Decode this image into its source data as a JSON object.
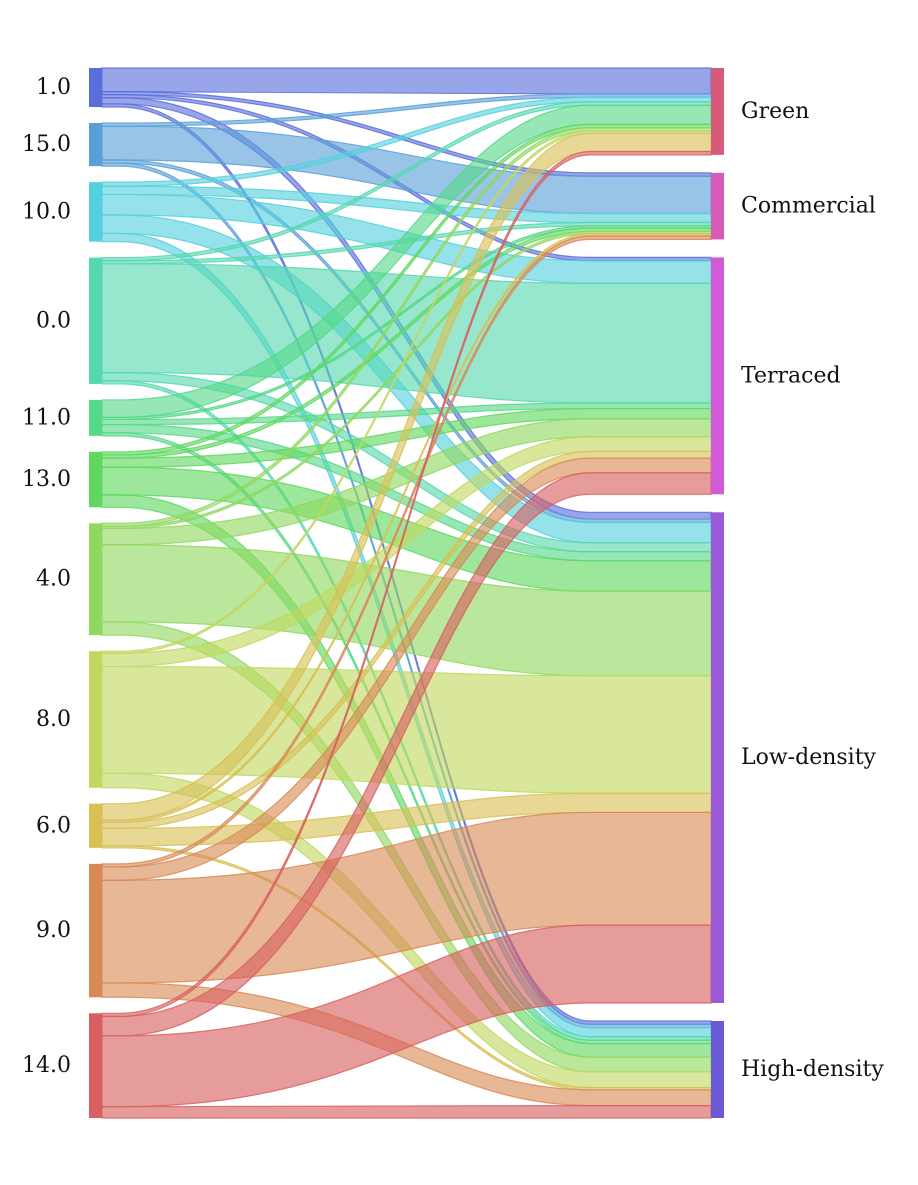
{
  "chart_data": {
    "type": "sankey",
    "title": "",
    "sources": [
      {
        "label": "1.0",
        "color": "#5a6edb"
      },
      {
        "label": "15.0",
        "color": "#5aa0d8"
      },
      {
        "label": "10.0",
        "color": "#55d0dd"
      },
      {
        "label": "0.0",
        "color": "#55d8b0"
      },
      {
        "label": "11.0",
        "color": "#55d888"
      },
      {
        "label": "13.0",
        "color": "#60d860"
      },
      {
        "label": "4.0",
        "color": "#90d860"
      },
      {
        "label": "8.0",
        "color": "#c0d860"
      },
      {
        "label": "6.0",
        "color": "#d8c055"
      },
      {
        "label": "9.0",
        "color": "#d88a55"
      },
      {
        "label": "14.0",
        "color": "#d86060"
      }
    ],
    "targets": [
      {
        "label": "Green",
        "color": "#d85a7a"
      },
      {
        "label": "Commercial",
        "color": "#d85ab8"
      },
      {
        "label": "Terraced",
        "color": "#d05ad8"
      },
      {
        "label": "Low-density",
        "color": "#9a5ad8"
      },
      {
        "label": "High-density",
        "color": "#6a5ad8"
      }
    ],
    "links": [
      {
        "source": "1.0",
        "target": "Green",
        "value": 2.3
      },
      {
        "source": "1.0",
        "target": "Commercial",
        "value": 0.3
      },
      {
        "source": "1.0",
        "target": "Terraced",
        "value": 0.3
      },
      {
        "source": "1.0",
        "target": "Low-density",
        "value": 0.6
      },
      {
        "source": "1.0",
        "target": "High-density",
        "value": 0.3
      },
      {
        "source": "15.0",
        "target": "Green",
        "value": 0.3
      },
      {
        "source": "15.0",
        "target": "Commercial",
        "value": 3.3
      },
      {
        "source": "15.0",
        "target": "Low-density",
        "value": 0.3
      },
      {
        "source": "15.0",
        "target": "High-density",
        "value": 0.3
      },
      {
        "source": "10.0",
        "target": "Green",
        "value": 0.4
      },
      {
        "source": "10.0",
        "target": "Commercial",
        "value": 0.8
      },
      {
        "source": "10.0",
        "target": "Terraced",
        "value": 2.0
      },
      {
        "source": "10.0",
        "target": "Low-density",
        "value": 1.8
      },
      {
        "source": "10.0",
        "target": "High-density",
        "value": 0.8
      },
      {
        "source": "0.0",
        "target": "Green",
        "value": 0.3
      },
      {
        "source": "0.0",
        "target": "Commercial",
        "value": 0.3
      },
      {
        "source": "0.0",
        "target": "Terraced",
        "value": 10.6
      },
      {
        "source": "0.0",
        "target": "Low-density",
        "value": 0.8
      },
      {
        "source": "0.0",
        "target": "High-density",
        "value": 0.3
      },
      {
        "source": "11.0",
        "target": "Green",
        "value": 1.7
      },
      {
        "source": "11.0",
        "target": "Commercial",
        "value": 0.2
      },
      {
        "source": "11.0",
        "target": "Terraced",
        "value": 0.5
      },
      {
        "source": "11.0",
        "target": "Low-density",
        "value": 0.8
      },
      {
        "source": "11.0",
        "target": "High-density",
        "value": 0.3
      },
      {
        "source": "13.0",
        "target": "Green",
        "value": 0.3
      },
      {
        "source": "13.0",
        "target": "Commercial",
        "value": 0.3
      },
      {
        "source": "13.0",
        "target": "Terraced",
        "value": 0.9
      },
      {
        "source": "13.0",
        "target": "Low-density",
        "value": 2.7
      },
      {
        "source": "13.0",
        "target": "High-density",
        "value": 1.2
      },
      {
        "source": "4.0",
        "target": "Green",
        "value": 0.3
      },
      {
        "source": "4.0",
        "target": "Commercial",
        "value": 0.2
      },
      {
        "source": "4.0",
        "target": "Terraced",
        "value": 1.6
      },
      {
        "source": "4.0",
        "target": "Low-density",
        "value": 7.5
      },
      {
        "source": "4.0",
        "target": "High-density",
        "value": 1.3
      },
      {
        "source": "8.0",
        "target": "Green",
        "value": 0.2
      },
      {
        "source": "8.0",
        "target": "Terraced",
        "value": 1.3
      },
      {
        "source": "8.0",
        "target": "Low-density",
        "value": 10.4
      },
      {
        "source": "8.0",
        "target": "High-density",
        "value": 1.4
      },
      {
        "source": "6.0",
        "target": "Green",
        "value": 1.6
      },
      {
        "source": "6.0",
        "target": "Commercial",
        "value": 0.2
      },
      {
        "source": "6.0",
        "target": "Terraced",
        "value": 0.6
      },
      {
        "source": "6.0",
        "target": "Low-density",
        "value": 1.7
      },
      {
        "source": "6.0",
        "target": "High-density",
        "value": 0.2
      },
      {
        "source": "9.0",
        "target": "Commercial",
        "value": 0.3
      },
      {
        "source": "9.0",
        "target": "Terraced",
        "value": 1.3
      },
      {
        "source": "9.0",
        "target": "Low-density",
        "value": 10.0
      },
      {
        "source": "9.0",
        "target": "High-density",
        "value": 1.4
      },
      {
        "source": "14.0",
        "target": "Green",
        "value": 0.3
      },
      {
        "source": "14.0",
        "target": "Terraced",
        "value": 1.9
      },
      {
        "source": "14.0",
        "target": "Low-density",
        "value": 6.9
      },
      {
        "source": "14.0",
        "target": "High-density",
        "value": 1.1
      }
    ]
  }
}
